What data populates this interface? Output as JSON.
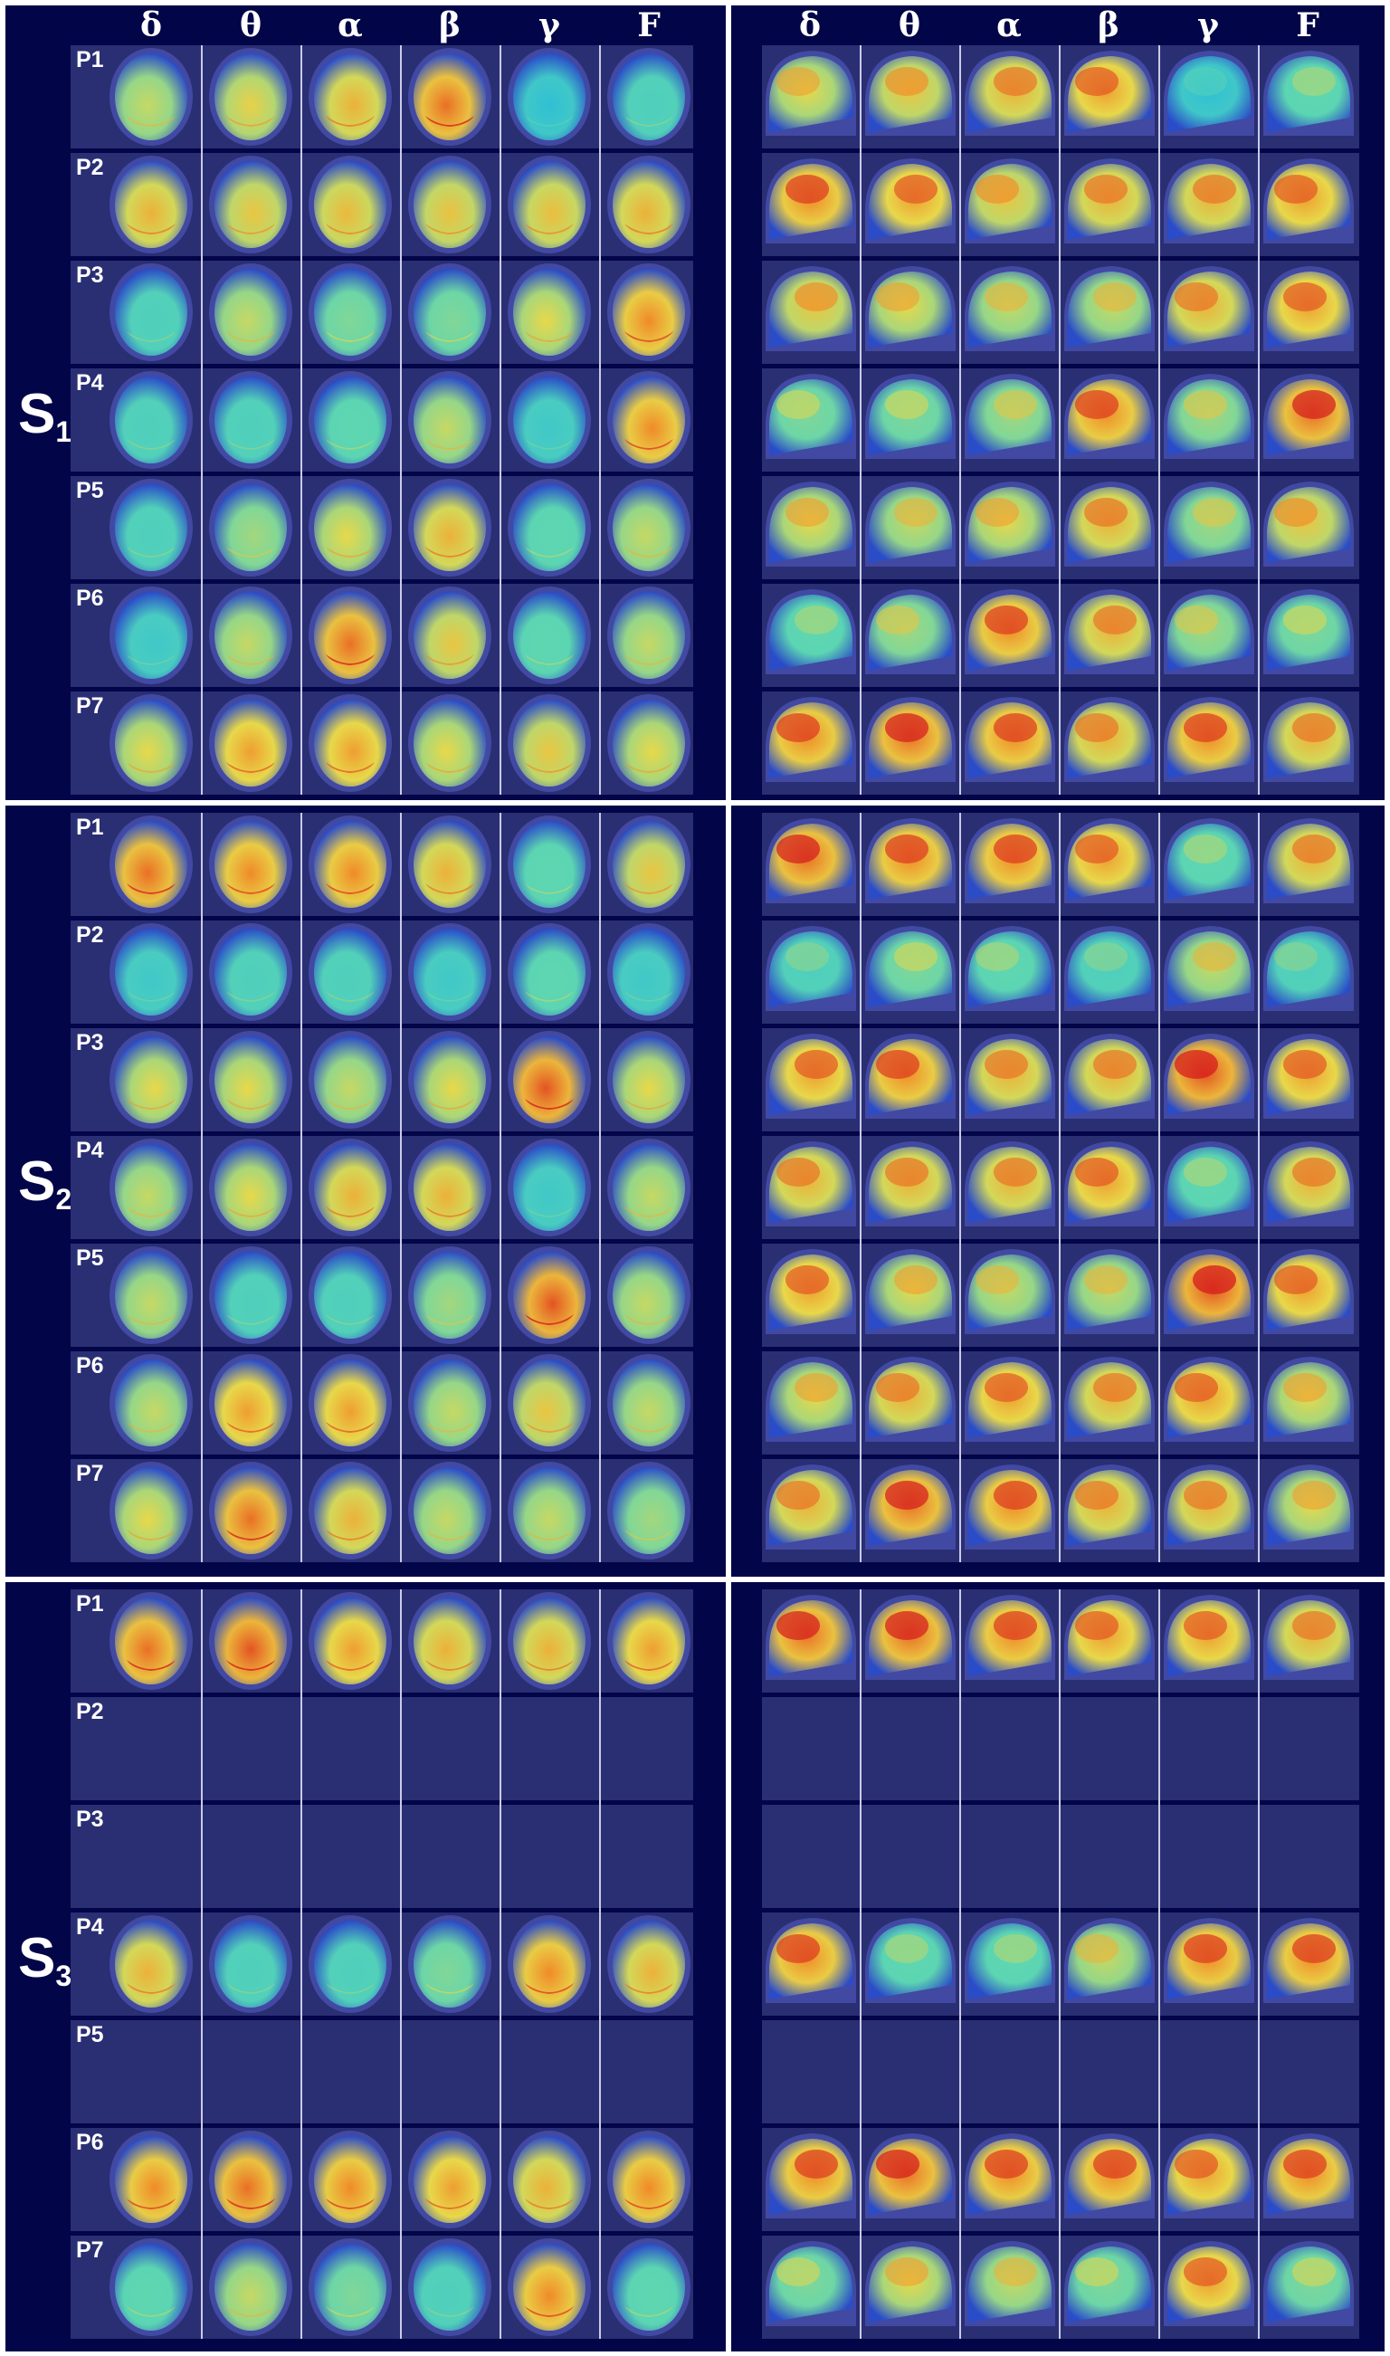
{
  "columns": [
    "δ",
    "θ",
    "α",
    "β",
    "γ",
    "F"
  ],
  "rows": [
    "P1",
    "P2",
    "P3",
    "P4",
    "P5",
    "P6",
    "P7"
  ],
  "colors": {
    "background": "#020548",
    "row_shade": "#2a2e73",
    "separator": "#ffffff",
    "colormap": [
      "#1c3cff",
      "#20b8e0",
      "#5fd6b0",
      "#e8d84a",
      "#f08a28",
      "#d61e1e"
    ]
  },
  "sessions": [
    {
      "label": "S",
      "sub": "1",
      "present": [
        true,
        true,
        true,
        true,
        true,
        true,
        true
      ],
      "intensity": [
        [
          0.55,
          0.62,
          0.7,
          0.85,
          0.25,
          0.35
        ],
        [
          0.7,
          0.65,
          0.68,
          0.66,
          0.67,
          0.7
        ],
        [
          0.35,
          0.55,
          0.45,
          0.45,
          0.6,
          0.8
        ],
        [
          0.35,
          0.35,
          0.4,
          0.55,
          0.3,
          0.8
        ],
        [
          0.35,
          0.5,
          0.6,
          0.7,
          0.4,
          0.55
        ],
        [
          0.3,
          0.55,
          0.85,
          0.65,
          0.4,
          0.55
        ],
        [
          0.6,
          0.75,
          0.75,
          0.6,
          0.65,
          0.6
        ]
      ],
      "sagittal_intensity": [
        [
          0.6,
          0.65,
          0.7,
          0.75,
          0.25,
          0.4
        ],
        [
          0.8,
          0.75,
          0.65,
          0.7,
          0.7,
          0.75
        ],
        [
          0.65,
          0.6,
          0.55,
          0.55,
          0.7,
          0.75
        ],
        [
          0.45,
          0.45,
          0.5,
          0.8,
          0.5,
          0.85
        ],
        [
          0.6,
          0.55,
          0.6,
          0.7,
          0.5,
          0.65
        ],
        [
          0.4,
          0.5,
          0.8,
          0.7,
          0.5,
          0.45
        ],
        [
          0.8,
          0.85,
          0.8,
          0.7,
          0.8,
          0.7
        ]
      ]
    },
    {
      "label": "S",
      "sub": "2",
      "present": [
        true,
        true,
        true,
        true,
        true,
        true,
        true
      ],
      "intensity": [
        [
          0.85,
          0.8,
          0.8,
          0.7,
          0.4,
          0.65
        ],
        [
          0.3,
          0.35,
          0.35,
          0.3,
          0.4,
          0.3
        ],
        [
          0.6,
          0.6,
          0.55,
          0.6,
          0.9,
          0.6
        ],
        [
          0.55,
          0.6,
          0.7,
          0.7,
          0.3,
          0.55
        ],
        [
          0.55,
          0.35,
          0.35,
          0.5,
          0.9,
          0.55
        ],
        [
          0.55,
          0.75,
          0.75,
          0.55,
          0.65,
          0.55
        ],
        [
          0.6,
          0.85,
          0.7,
          0.55,
          0.55,
          0.5
        ]
      ],
      "sagittal_intensity": [
        [
          0.85,
          0.8,
          0.8,
          0.75,
          0.4,
          0.7
        ],
        [
          0.35,
          0.45,
          0.4,
          0.35,
          0.55,
          0.35
        ],
        [
          0.75,
          0.8,
          0.7,
          0.7,
          0.9,
          0.75
        ],
        [
          0.7,
          0.7,
          0.7,
          0.75,
          0.4,
          0.7
        ],
        [
          0.75,
          0.6,
          0.55,
          0.55,
          0.9,
          0.75
        ],
        [
          0.6,
          0.7,
          0.75,
          0.7,
          0.75,
          0.6
        ],
        [
          0.7,
          0.85,
          0.8,
          0.7,
          0.7,
          0.6
        ]
      ]
    },
    {
      "label": "S",
      "sub": "3",
      "present": [
        true,
        false,
        false,
        true,
        false,
        true,
        true
      ],
      "intensity": [
        [
          0.85,
          0.9,
          0.75,
          0.7,
          0.7,
          0.75
        ],
        [
          0,
          0,
          0,
          0,
          0,
          0
        ],
        [
          0,
          0,
          0,
          0,
          0,
          0
        ],
        [
          0.7,
          0.35,
          0.35,
          0.45,
          0.8,
          0.7
        ],
        [
          0,
          0,
          0,
          0,
          0,
          0
        ],
        [
          0.8,
          0.85,
          0.8,
          0.75,
          0.7,
          0.8
        ],
        [
          0.4,
          0.55,
          0.45,
          0.35,
          0.8,
          0.4
        ]
      ],
      "sagittal_intensity": [
        [
          0.85,
          0.85,
          0.8,
          0.75,
          0.75,
          0.7
        ],
        [
          0,
          0,
          0,
          0,
          0,
          0
        ],
        [
          0,
          0,
          0,
          0,
          0,
          0
        ],
        [
          0.8,
          0.4,
          0.4,
          0.55,
          0.8,
          0.8
        ],
        [
          0,
          0,
          0,
          0,
          0,
          0
        ],
        [
          0.8,
          0.85,
          0.8,
          0.8,
          0.75,
          0.8
        ],
        [
          0.45,
          0.6,
          0.55,
          0.45,
          0.75,
          0.45
        ]
      ]
    }
  ]
}
